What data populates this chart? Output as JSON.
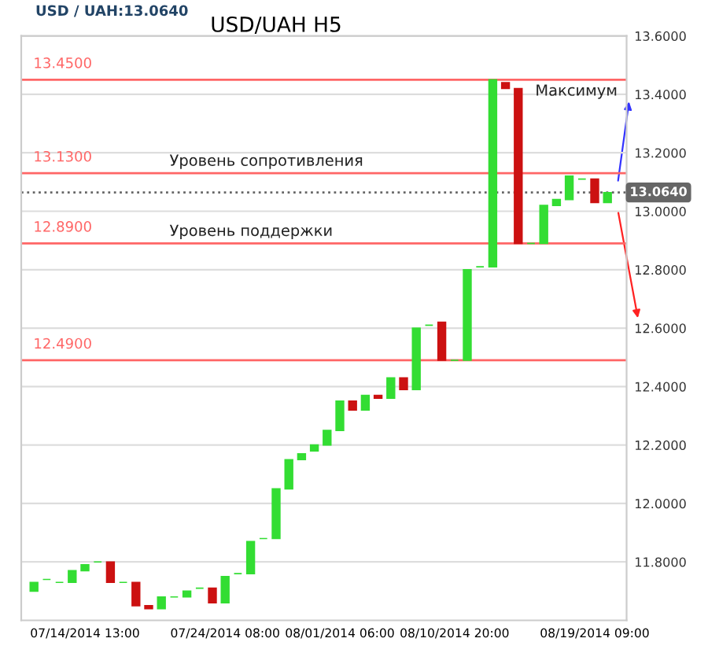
{
  "chart_data": {
    "type": "candlestick",
    "title": "USD/UAH H5",
    "subtitle": "USD / UAH:13.0640",
    "categories": [
      null,
      null,
      null,
      null,
      "07/14/2014 13:00",
      null,
      null,
      null,
      null,
      null,
      null,
      null,
      null,
      null,
      null,
      "07/24/2014 08:00",
      null,
      null,
      null,
      null,
      null,
      null,
      null,
      null,
      "08/01/2014 06:00",
      null,
      null,
      null,
      null,
      null,
      null,
      null,
      null,
      "08/10/2014 20:00",
      null,
      null,
      null,
      null,
      null,
      null,
      null,
      null,
      null,
      null,
      "08/19/2014 09:00",
      null
    ],
    "ohlc": [
      [
        11.7,
        11.73,
        11.7,
        11.73
      ],
      [
        11.74,
        11.74,
        11.74,
        11.74
      ],
      [
        11.73,
        11.73,
        11.73,
        11.73
      ],
      [
        11.73,
        11.77,
        11.73,
        11.77
      ],
      [
        11.77,
        11.79,
        11.77,
        11.79
      ],
      [
        11.8,
        11.8,
        11.8,
        11.8
      ],
      [
        11.8,
        11.8,
        11.73,
        11.73
      ],
      [
        11.73,
        11.73,
        11.73,
        11.73
      ],
      [
        11.73,
        11.73,
        11.65,
        11.65
      ],
      [
        11.65,
        11.65,
        11.64,
        11.64
      ],
      [
        11.64,
        11.68,
        11.64,
        11.68
      ],
      [
        11.68,
        11.68,
        11.68,
        11.68
      ],
      [
        11.68,
        11.7,
        11.68,
        11.7
      ],
      [
        11.71,
        11.71,
        11.71,
        11.71
      ],
      [
        11.71,
        11.71,
        11.66,
        11.66
      ],
      [
        11.66,
        11.75,
        11.66,
        11.75
      ],
      [
        11.76,
        11.76,
        11.76,
        11.76
      ],
      [
        11.76,
        11.87,
        11.76,
        11.87
      ],
      [
        11.88,
        11.88,
        11.88,
        11.88
      ],
      [
        11.88,
        12.05,
        11.88,
        12.05
      ],
      [
        12.05,
        12.15,
        12.05,
        12.15
      ],
      [
        12.15,
        12.17,
        12.15,
        12.17
      ],
      [
        12.18,
        12.2,
        12.18,
        12.2
      ],
      [
        12.2,
        12.25,
        12.2,
        12.25
      ],
      [
        12.25,
        12.35,
        12.25,
        12.35
      ],
      [
        12.35,
        12.35,
        12.32,
        12.32
      ],
      [
        12.32,
        12.37,
        12.32,
        12.37
      ],
      [
        12.37,
        12.37,
        12.36,
        12.36
      ],
      [
        12.36,
        12.43,
        12.36,
        12.43
      ],
      [
        12.43,
        12.43,
        12.39,
        12.39
      ],
      [
        12.39,
        12.6,
        12.39,
        12.6
      ],
      [
        12.61,
        12.61,
        12.61,
        12.61
      ],
      [
        12.62,
        12.62,
        12.49,
        12.49
      ],
      [
        12.49,
        12.49,
        12.49,
        12.49
      ],
      [
        12.49,
        12.8,
        12.49,
        12.8
      ],
      [
        12.81,
        12.81,
        12.81,
        12.81
      ],
      [
        12.81,
        13.45,
        12.81,
        13.45
      ],
      [
        13.44,
        13.44,
        13.42,
        13.42
      ],
      [
        13.42,
        13.42,
        12.89,
        12.89
      ],
      [
        12.89,
        12.89,
        12.89,
        12.89
      ],
      [
        12.89,
        13.02,
        12.89,
        13.02
      ],
      [
        13.02,
        13.04,
        13.02,
        13.04
      ],
      [
        13.04,
        13.12,
        13.04,
        13.12
      ],
      [
        13.11,
        13.11,
        13.11,
        13.11
      ],
      [
        13.11,
        13.11,
        13.03,
        13.03
      ],
      [
        13.03,
        13.064,
        13.03,
        13.064
      ]
    ],
    "colors": [
      "#33dd33",
      "#33dd33",
      "#33dd33",
      "#33dd33",
      "#33dd33",
      "#33dd33",
      "#cc1111",
      "#33dd33",
      "#cc1111",
      "#cc1111",
      "#33dd33",
      "#33dd33",
      "#33dd33",
      "#33dd33",
      "#cc1111",
      "#33dd33",
      "#33dd33",
      "#33dd33",
      "#33dd33",
      "#33dd33",
      "#33dd33",
      "#33dd33",
      "#33dd33",
      "#33dd33",
      "#33dd33",
      "#cc1111",
      "#33dd33",
      "#cc1111",
      "#33dd33",
      "#cc1111",
      "#33dd33",
      "#33dd33",
      "#cc1111",
      "#33dd33",
      "#33dd33",
      "#33dd33",
      "#33dd33",
      "#cc1111",
      "#cc1111",
      "#33dd33",
      "#33dd33",
      "#33dd33",
      "#33dd33",
      "#33dd33",
      "#cc1111",
      "#33dd33"
    ],
    "ylim": [
      11.6,
      13.6
    ],
    "yticks": [
      {
        "value": 11.8,
        "label": "11.8000"
      },
      {
        "value": 12.0,
        "label": "12.0000"
      },
      {
        "value": 12.2,
        "label": "12.2000"
      },
      {
        "value": 12.4,
        "label": "12.4000"
      },
      {
        "value": 12.6,
        "label": "12.6000"
      },
      {
        "value": 12.8,
        "label": "12.8000"
      },
      {
        "value": 13.0,
        "label": "13.0000"
      },
      {
        "value": 13.2,
        "label": "13.2000"
      },
      {
        "value": 13.4,
        "label": "13.4000"
      },
      {
        "value": 13.6,
        "label": "13.6000"
      }
    ],
    "grid": "y",
    "ref_lines": [
      {
        "axis": "y",
        "value": 13.45,
        "label": "13.4500",
        "color": "#ff6666"
      },
      {
        "axis": "y",
        "value": 13.13,
        "label": "13.1300",
        "color": "#ff6666"
      },
      {
        "axis": "y",
        "value": 12.89,
        "label": "12.8900",
        "color": "#ff6666"
      },
      {
        "axis": "y",
        "value": 12.49,
        "label": "12.4900",
        "color": "#ff6666"
      },
      {
        "axis": "y",
        "value": 13.064,
        "label": "13.0640",
        "color": "#666666",
        "line_style": "dotted"
      }
    ],
    "annotations": [
      "Максимум",
      "Уровень сопротивления",
      "Уровень поддержки"
    ]
  }
}
